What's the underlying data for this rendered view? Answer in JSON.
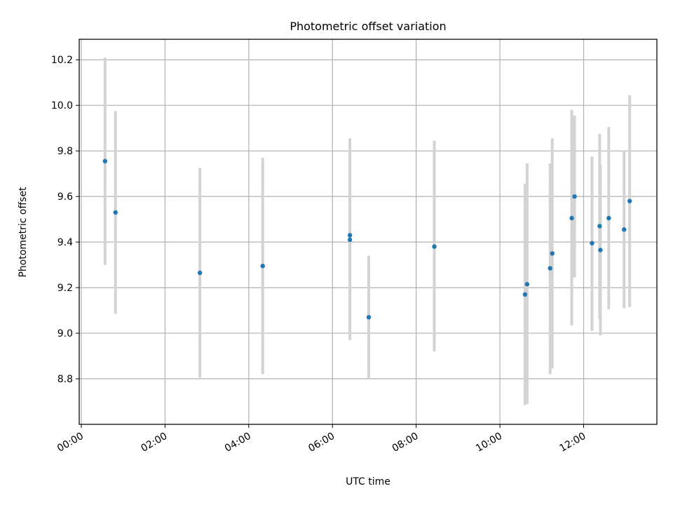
{
  "chart_data": {
    "type": "scatter",
    "title": "Photometric offset variation",
    "xlabel": "UTC time",
    "ylabel": "Photometric offset",
    "x_axis_type": "time",
    "xlim": [
      "-00:03",
      "13:45"
    ],
    "ylim": [
      8.6,
      10.29
    ],
    "grid": true,
    "legend": "none",
    "x_ticks": [
      "00:00",
      "02:00",
      "04:00",
      "06:00",
      "08:00",
      "10:00",
      "12:00"
    ],
    "y_ticks": [
      "8.8",
      "9.0",
      "9.2",
      "9.4",
      "9.6",
      "9.8",
      "10.0",
      "10.2"
    ],
    "colors": {
      "points": "#1f77b4",
      "error_bars": "#d3d3d3",
      "grid": "#b0b0b0"
    },
    "points": [
      {
        "time": "00:34",
        "y": 9.755,
        "ylow": 9.3,
        "yhigh": 10.21
      },
      {
        "time": "00:49",
        "y": 9.53,
        "ylow": 9.085,
        "yhigh": 9.975
      },
      {
        "time": "02:50",
        "y": 9.265,
        "ylow": 8.805,
        "yhigh": 9.725
      },
      {
        "time": "04:20",
        "y": 9.295,
        "ylow": 8.82,
        "yhigh": 9.77
      },
      {
        "time": "06:25",
        "y": 9.43,
        "ylow": 9.0,
        "yhigh": 9.855
      },
      {
        "time": "06:25",
        "y": 9.41,
        "ylow": 8.97,
        "yhigh": 9.8
      },
      {
        "time": "06:52",
        "y": 9.07,
        "ylow": 8.8,
        "yhigh": 9.34
      },
      {
        "time": "08:26",
        "y": 9.38,
        "ylow": 8.92,
        "yhigh": 9.845
      },
      {
        "time": "10:36",
        "y": 9.17,
        "ylow": 8.685,
        "yhigh": 9.655
      },
      {
        "time": "10:39",
        "y": 9.215,
        "ylow": 8.69,
        "yhigh": 9.745
      },
      {
        "time": "11:12",
        "y": 9.285,
        "ylow": 8.82,
        "yhigh": 9.745
      },
      {
        "time": "11:15",
        "y": 9.35,
        "ylow": 8.845,
        "yhigh": 9.855
      },
      {
        "time": "11:43",
        "y": 9.505,
        "ylow": 9.035,
        "yhigh": 9.98
      },
      {
        "time": "11:47",
        "y": 9.6,
        "ylow": 9.245,
        "yhigh": 9.955
      },
      {
        "time": "12:12",
        "y": 9.395,
        "ylow": 9.01,
        "yhigh": 9.775
      },
      {
        "time": "12:23",
        "y": 9.47,
        "ylow": 9.065,
        "yhigh": 9.875
      },
      {
        "time": "12:24",
        "y": 9.365,
        "ylow": 8.99,
        "yhigh": 9.74
      },
      {
        "time": "12:36",
        "y": 9.505,
        "ylow": 9.105,
        "yhigh": 9.905
      },
      {
        "time": "12:58",
        "y": 9.455,
        "ylow": 9.11,
        "yhigh": 9.8
      },
      {
        "time": "13:06",
        "y": 9.58,
        "ylow": 9.115,
        "yhigh": 10.045
      }
    ]
  }
}
